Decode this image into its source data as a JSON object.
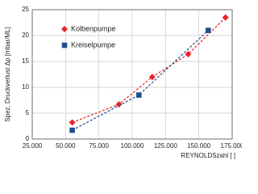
{
  "chart_data": {
    "type": "scatter",
    "xlabel": "REYNOLDSzahl [ ]",
    "ylabel": "Spez. Druckverlust Δp [mbar/ML]",
    "xlim": [
      25000,
      175000
    ],
    "ylim": [
      0,
      25
    ],
    "xticks": [
      {
        "value": 25000,
        "label": "25.000"
      },
      {
        "value": 50000,
        "label": "50.000"
      },
      {
        "value": 75000,
        "label": "75.000"
      },
      {
        "value": 100000,
        "label": "100.000"
      },
      {
        "value": 125000,
        "label": "125.000"
      },
      {
        "value": 150000,
        "label": "150.000"
      },
      {
        "value": 175000,
        "label": "175.000"
      }
    ],
    "yticks": [
      0,
      5,
      10,
      15,
      20,
      25
    ],
    "grid": true,
    "legend": "upper left",
    "series": [
      {
        "name": "Kolbenpumpe",
        "color": "#e8262a",
        "marker": "diamond",
        "x": [
          55000,
          90000,
          115000,
          142000,
          170000
        ],
        "values": [
          3.2,
          6.7,
          12,
          16.4,
          23.5
        ]
      },
      {
        "name": "Kreiselpumpe",
        "color": "#1f4e8c",
        "marker": "square",
        "x": [
          55000,
          105000,
          157000
        ],
        "values": [
          1.7,
          8.5,
          21
        ]
      }
    ]
  }
}
